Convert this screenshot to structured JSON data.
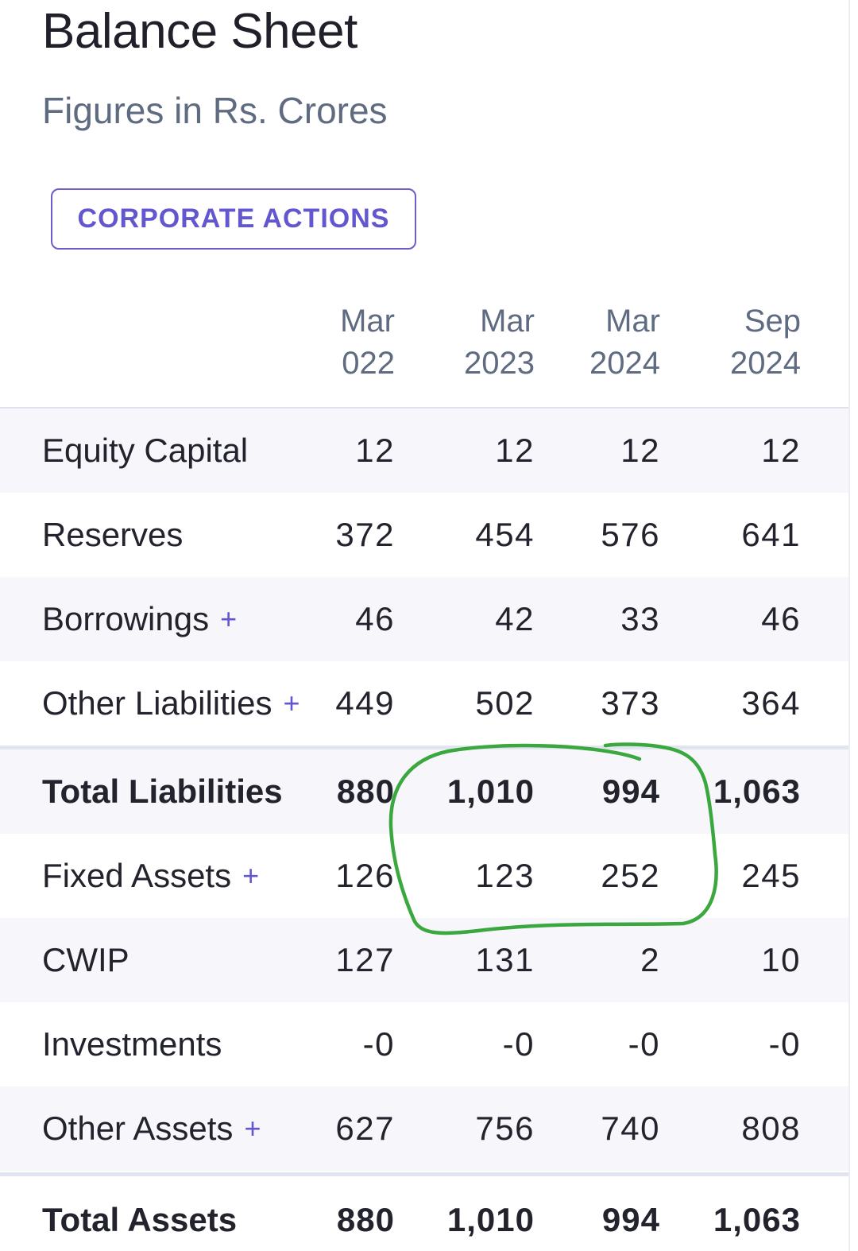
{
  "header": {
    "title": "Balance Sheet",
    "subtitle": "Figures in Rs. Crores",
    "action_button": "CORPORATE ACTIONS"
  },
  "table": {
    "columns": [
      {
        "month": "Mar",
        "year": "022"
      },
      {
        "month": "Mar",
        "year": "2023"
      },
      {
        "month": "Mar",
        "year": "2024"
      },
      {
        "month": "Sep",
        "year": "2024"
      }
    ],
    "rows": [
      {
        "label": "Equity Capital",
        "expandable": false,
        "is_total": false,
        "values": [
          "12",
          "12",
          "12",
          "12"
        ]
      },
      {
        "label": "Reserves",
        "expandable": false,
        "is_total": false,
        "values": [
          "372",
          "454",
          "576",
          "641"
        ]
      },
      {
        "label": "Borrowings",
        "expandable": true,
        "expand_symbol": "+",
        "is_total": false,
        "values": [
          "46",
          "42",
          "33",
          "46"
        ]
      },
      {
        "label": "Other Liabilities",
        "expandable": true,
        "expand_symbol": "+",
        "is_total": false,
        "values": [
          "449",
          "502",
          "373",
          "364"
        ]
      },
      {
        "label": "Total Liabilities",
        "expandable": false,
        "is_total": true,
        "values": [
          "880",
          "1,010",
          "994",
          "1,063"
        ]
      },
      {
        "label": "Fixed Assets",
        "expandable": true,
        "expand_symbol": "+",
        "is_total": false,
        "values": [
          "126",
          "123",
          "252",
          "245"
        ]
      },
      {
        "label": "CWIP",
        "expandable": false,
        "is_total": false,
        "values": [
          "127",
          "131",
          "2",
          "10"
        ]
      },
      {
        "label": "Investments",
        "expandable": false,
        "is_total": false,
        "values": [
          "-0",
          "-0",
          "-0",
          "-0"
        ]
      },
      {
        "label": "Other Assets",
        "expandable": true,
        "expand_symbol": "+",
        "is_total": false,
        "values": [
          "627",
          "756",
          "740",
          "808"
        ]
      },
      {
        "label": "Total Assets",
        "expandable": false,
        "is_total": true,
        "values": [
          "880",
          "1,010",
          "994",
          "1,063"
        ]
      }
    ]
  },
  "colors": {
    "accent": "#6357cf",
    "title": "#1f2029",
    "muted_text": "#5f6b80",
    "row_shade": "#f6f6fb",
    "divider": "#e1e5f0",
    "annotation_stroke": "#3aa83e"
  },
  "annotation": {
    "shape": "hand-drawn green circle",
    "highlighted_columns": [
      "Mar 2023",
      "Mar 2024"
    ],
    "highlighted_rows": [
      "Total Liabilities",
      "Fixed Assets"
    ]
  }
}
